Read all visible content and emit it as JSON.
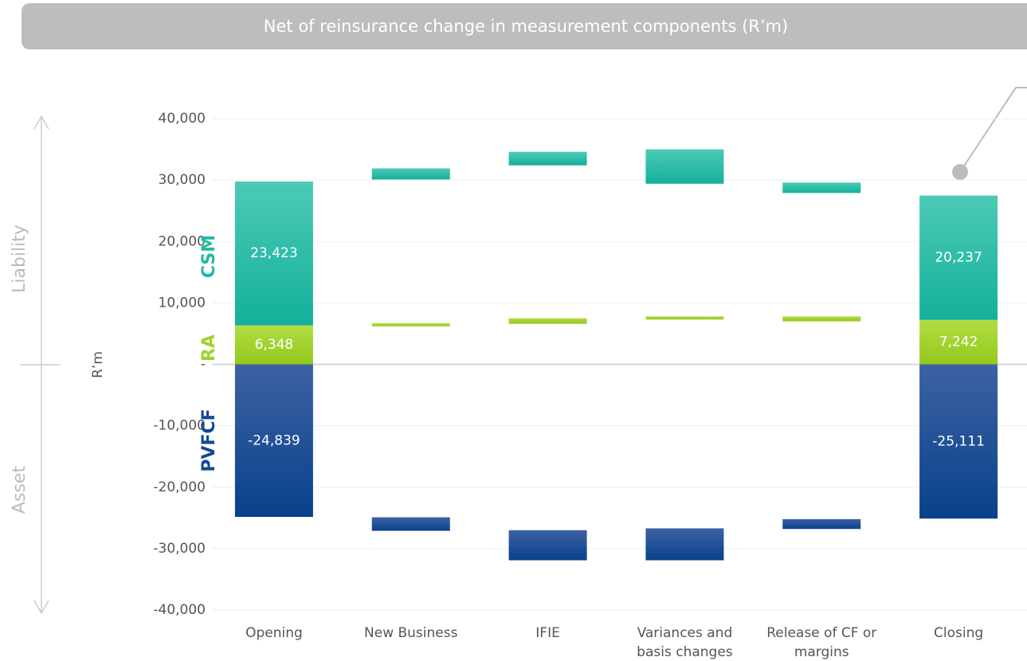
{
  "chart_data": {
    "type": "floating_bar",
    "title": "Net of reinsurance change in measurement components (R’m)",
    "y_label": "R’m",
    "annotations": [
      "Liability",
      "Asset"
    ],
    "categories": [
      "Opening",
      "New Business",
      "IFIE",
      "Variances and basis changes",
      "Release of CF or margins",
      "Closing"
    ],
    "series": [
      {
        "name": "CSM",
        "color": "#22b9a3",
        "values": [
          23423,
          1800,
          2200,
          5600,
          -1700,
          20237
        ],
        "starts": [
          null,
          30100,
          32400,
          29400,
          29600,
          null
        ],
        "value_labels": [
          "23,423",
          null,
          null,
          null,
          null,
          "20,237"
        ]
      },
      {
        "name": "RA",
        "color": "#9fd22a",
        "values": [
          6348,
          500,
          900,
          500,
          -800,
          7242
        ],
        "starts": [
          null,
          6200,
          6600,
          7300,
          7800,
          null
        ],
        "value_labels": [
          "6,348",
          null,
          null,
          null,
          null,
          "7,242"
        ]
      },
      {
        "name": "PVFCF",
        "color": "#124a92",
        "values": [
          -24839,
          -2200,
          -4900,
          -5200,
          -1600,
          -25111
        ],
        "starts": [
          null,
          -24900,
          -27000,
          -26700,
          -25200,
          null
        ],
        "value_labels": [
          "-24,839",
          null,
          null,
          null,
          null,
          "-25,111"
        ]
      }
    ],
    "ylim": [
      -40000,
      40000
    ],
    "yticks": [
      {
        "value": -40000,
        "label": "-40,000"
      },
      {
        "value": -30000,
        "label": "-30,000"
      },
      {
        "value": -20000,
        "label": "-20,000"
      },
      {
        "value": -10000,
        "label": "-10,000"
      },
      {
        "value": 0,
        "label": "-"
      },
      {
        "value": 10000,
        "label": "10,000"
      },
      {
        "value": 20000,
        "label": "20,000"
      },
      {
        "value": 30000,
        "label": "30,000"
      },
      {
        "value": 40000,
        "label": "40,000"
      }
    ],
    "grid": true
  }
}
